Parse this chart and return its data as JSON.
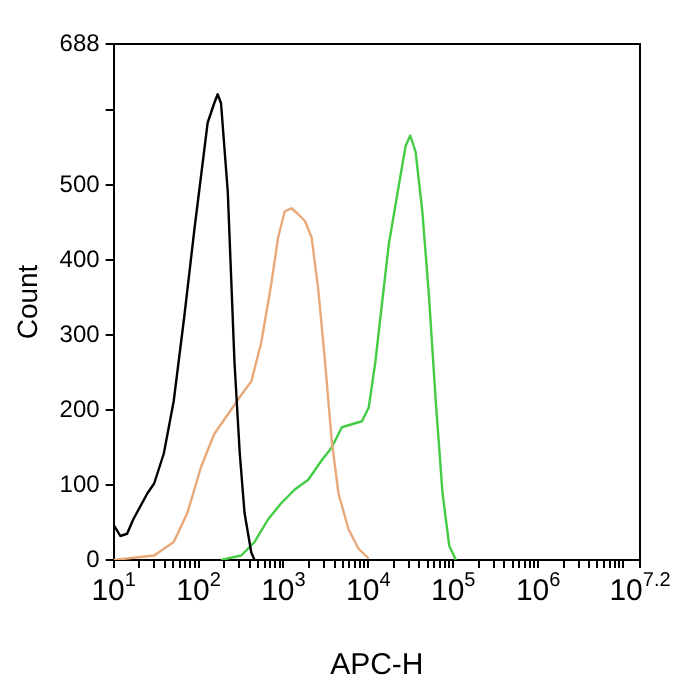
{
  "chart_data": {
    "type": "line",
    "xlabel": "APC-H",
    "ylabel": "Count",
    "log": "x",
    "grid": false,
    "legend": false,
    "marker": "none",
    "line_style": "solid",
    "xlim": [
      10,
      15848932
    ],
    "ylim": [
      0,
      688
    ],
    "xticks": [
      {
        "value": 10,
        "label": "10$^{1}$"
      },
      {
        "value": 20,
        "label": null
      },
      {
        "value": 30,
        "label": null
      },
      {
        "value": 40,
        "label": null
      },
      {
        "value": 50,
        "label": null
      },
      {
        "value": 60,
        "label": null
      },
      {
        "value": 70,
        "label": null
      },
      {
        "value": 80,
        "label": null
      },
      {
        "value": 90,
        "label": null
      },
      {
        "value": 100,
        "label": "10$^{2}$"
      },
      {
        "value": 200,
        "label": null
      },
      {
        "value": 300,
        "label": null
      },
      {
        "value": 400,
        "label": null
      },
      {
        "value": 500,
        "label": null
      },
      {
        "value": 600,
        "label": null
      },
      {
        "value": 700,
        "label": null
      },
      {
        "value": 800,
        "label": null
      },
      {
        "value": 900,
        "label": null
      },
      {
        "value": 1000,
        "label": "10$^{3}$"
      },
      {
        "value": 2000,
        "label": null
      },
      {
        "value": 3000,
        "label": null
      },
      {
        "value": 4000,
        "label": null
      },
      {
        "value": 5000,
        "label": null
      },
      {
        "value": 6000,
        "label": null
      },
      {
        "value": 7000,
        "label": null
      },
      {
        "value": 8000,
        "label": null
      },
      {
        "value": 9000,
        "label": null
      },
      {
        "value": 10000,
        "label": "10$^{4}$"
      },
      {
        "value": 20000,
        "label": null
      },
      {
        "value": 30000,
        "label": null
      },
      {
        "value": 40000,
        "label": null
      },
      {
        "value": 50000,
        "label": null
      },
      {
        "value": 60000,
        "label": null
      },
      {
        "value": 70000,
        "label": null
      },
      {
        "value": 80000,
        "label": null
      },
      {
        "value": 90000,
        "label": null
      },
      {
        "value": 100000,
        "label": "10$^{5}$"
      },
      {
        "value": 200000,
        "label": null
      },
      {
        "value": 300000,
        "label": null
      },
      {
        "value": 400000,
        "label": null
      },
      {
        "value": 500000,
        "label": null
      },
      {
        "value": 600000,
        "label": null
      },
      {
        "value": 700000,
        "label": null
      },
      {
        "value": 800000,
        "label": null
      },
      {
        "value": 900000,
        "label": null
      },
      {
        "value": 1000000,
        "label": "10$^{6}$"
      },
      {
        "value": 2000000,
        "label": null
      },
      {
        "value": 3000000,
        "label": null
      },
      {
        "value": 4000000,
        "label": null
      },
      {
        "value": 5000000,
        "label": null
      },
      {
        "value": 6000000,
        "label": null
      },
      {
        "value": 7000000,
        "label": null
      },
      {
        "value": 8000000,
        "label": null
      },
      {
        "value": 9000000,
        "label": null
      },
      {
        "value": 10000000,
        "label": null
      },
      {
        "value": 15848932,
        "label": "10$^{7.2}$"
      }
    ],
    "yticks": [
      0,
      100,
      200,
      300,
      400,
      500,
      {
        "value": 600,
        "label": null
      },
      688
    ],
    "series": [
      {
        "color": "#000000",
        "x": [
          10,
          12,
          14.4,
          17,
          25,
          30,
          39,
          51,
          68,
          89,
          128,
          153,
          168,
          184,
          221,
          265,
          306,
          348,
          418,
          457
        ],
        "values": [
          47,
          32,
          35,
          54,
          89,
          102,
          142,
          212,
          325,
          439,
          583,
          609,
          621,
          609,
          491,
          264,
          142,
          63,
          10,
          0
        ]
      },
      {
        "color": "#e8a878",
        "x": [
          10,
          30,
          51,
          74,
          107,
          153,
          221,
          318,
          418,
          548,
          721,
          865,
          1038,
          1245,
          1493,
          1791,
          2148,
          2576,
          3090,
          3706,
          4445,
          5845,
          7680,
          10090
        ],
        "values": [
          0,
          6,
          24,
          63,
          124,
          168,
          194,
          220,
          238,
          290,
          369,
          430,
          465,
          469,
          461,
          452,
          430,
          360,
          264,
          159,
          89,
          41,
          15,
          2
        ]
      },
      {
        "color": "#44cc44",
        "x": [
          184,
          318,
          457,
          658,
          946,
          1362,
          1960,
          2824,
          3706,
          4876,
          6400,
          8410,
          10090,
          12100,
          14520,
          17420,
          22900,
          27470,
          31200,
          36060,
          43250,
          51880,
          62230,
          74820,
          89760,
          107600
        ],
        "values": [
          0,
          6,
          24,
          54,
          76,
          94,
          107,
          133,
          150,
          177,
          181,
          185,
          203,
          264,
          343,
          421,
          500,
          552,
          566,
          544,
          465,
          351,
          212,
          89,
          19,
          0
        ]
      }
    ]
  }
}
